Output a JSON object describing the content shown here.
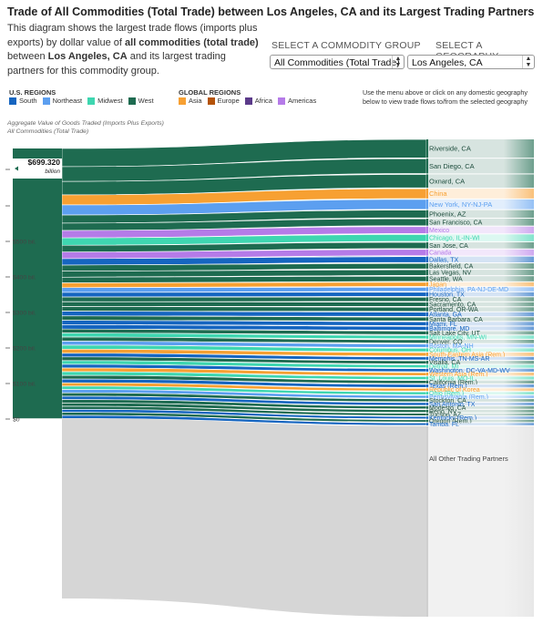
{
  "header": {
    "title": "Trade of All Commodities (Total Trade) between Los Angeles, CA and its Largest Trading Partners",
    "desc_prefix": "This diagram shows the largest trade flows (imports plus exports) by dollar value of ",
    "desc_bold1": "all commodities (total trade)",
    "desc_mid": " between ",
    "desc_bold2": "Los Angeles, CA",
    "desc_suffix": " and its largest trading partners for this commodity group."
  },
  "controls": {
    "commodity_label": "SELECT A COMMODITY GROUP",
    "commodity_value": "All Commodities (Total Trade)",
    "geography_label": "SELECT A GEOGRAPHY",
    "geography_value": "Los Angeles, CA"
  },
  "legend": {
    "us_title": "U.S. REGIONS",
    "us_items": [
      {
        "label": "South",
        "color": "#1565c0"
      },
      {
        "label": "Northeast",
        "color": "#5c9ff0"
      },
      {
        "label": "Midwest",
        "color": "#3ed6b0"
      },
      {
        "label": "West",
        "color": "#1e6b50"
      }
    ],
    "global_title": "GLOBAL REGIONS",
    "global_items": [
      {
        "label": "Asia",
        "color": "#f7a032"
      },
      {
        "label": "Europe",
        "color": "#b45309"
      },
      {
        "label": "Africa",
        "color": "#5b3a8a"
      },
      {
        "label": "Americas",
        "color": "#b57be8"
      }
    ]
  },
  "help_text": "Use the menu above or click on any domestic geography below to view trade flows to/from the selected geography",
  "chart_data": {
    "type": "sankey",
    "title": "Trade of All Commodities (Total Trade) between Los Angeles, CA and its Largest Trading Partners",
    "subtitle_line1": "Aggregate Value of Goods Traded (Imports Plus Exports)",
    "subtitle_line2": "All Commodities (Total Trade)",
    "source": "Los Angeles, CA",
    "total_value": "$699.320",
    "total_unit": "billion",
    "total_num": 699.32,
    "axis_ticks": [
      {
        "value": 500,
        "label": "$500 bil."
      },
      {
        "value": 400,
        "label": "$400 bil."
      },
      {
        "value": 300,
        "label": "$300 bil."
      },
      {
        "value": 200,
        "label": "$200 bil."
      },
      {
        "value": 100,
        "label": "$100 bil."
      },
      {
        "value": 0,
        "label": "$0"
      }
    ],
    "partners": [
      {
        "name": "Riverside, CA",
        "value": 27,
        "region": "West"
      },
      {
        "name": "San Diego, CA",
        "value": 22,
        "region": "West"
      },
      {
        "name": "Oxnard, CA",
        "value": 20,
        "region": "West"
      },
      {
        "name": "China",
        "value": 15,
        "region": "Asia"
      },
      {
        "name": "New York, NY-NJ-PA",
        "value": 15,
        "region": "Northeast"
      },
      {
        "name": "Phoenix, AZ",
        "value": 12,
        "region": "West"
      },
      {
        "name": "San Francisco, CA",
        "value": 11,
        "region": "West"
      },
      {
        "name": "Mexico",
        "value": 11,
        "region": "Americas"
      },
      {
        "name": "Chicago, IL-IN-WI",
        "value": 11,
        "region": "Midwest"
      },
      {
        "name": "San Jose, CA",
        "value": 10,
        "region": "West"
      },
      {
        "name": "Canada",
        "value": 10,
        "region": "Americas"
      },
      {
        "name": "Dallas, TX",
        "value": 9.5,
        "region": "South"
      },
      {
        "name": "Bakersfield, CA",
        "value": 9,
        "region": "West"
      },
      {
        "name": "Las Vegas, NV",
        "value": 9,
        "region": "West"
      },
      {
        "name": "Seattle, WA",
        "value": 8.5,
        "region": "West"
      },
      {
        "name": "Japan",
        "value": 7,
        "region": "Asia"
      },
      {
        "name": "Philadelphia, PA-NJ-DE-MD",
        "value": 7,
        "region": "Northeast"
      },
      {
        "name": "Houston, TX",
        "value": 7,
        "region": "South"
      },
      {
        "name": "Fresno, CA",
        "value": 7,
        "region": "West"
      },
      {
        "name": "Sacramento, CA",
        "value": 7,
        "region": "West"
      },
      {
        "name": "Portland, OR-WA",
        "value": 7,
        "region": "West"
      },
      {
        "name": "Atlanta, GA",
        "value": 7,
        "region": "South"
      },
      {
        "name": "Santa Barbara, CA",
        "value": 6.5,
        "region": "West"
      },
      {
        "name": "Miami, FL",
        "value": 6.5,
        "region": "South"
      },
      {
        "name": "Baltimore, MD",
        "value": 6.5,
        "region": "South"
      },
      {
        "name": "Salt Lake City, UT",
        "value": 6,
        "region": "West"
      },
      {
        "name": "Minneapolis, MN-WI",
        "value": 6,
        "region": "Midwest"
      },
      {
        "name": "Denver, CO",
        "value": 6,
        "region": "West"
      },
      {
        "name": "Boston, MA-NH",
        "value": 6,
        "region": "Northeast"
      },
      {
        "name": "Columbus, OH",
        "value": 6,
        "region": "Midwest"
      },
      {
        "name": "South-Eastern Asia (Rem.)",
        "value": 6,
        "region": "Asia"
      },
      {
        "name": "Memphis, TN-MS-AR",
        "value": 5.5,
        "region": "South"
      },
      {
        "name": "Visalia, CA",
        "value": 5.5,
        "region": "West"
      },
      {
        "name": "Detroit, MI",
        "value": 5.5,
        "region": "Midwest"
      },
      {
        "name": "Washington, DC-VA-MD-WV",
        "value": 5.5,
        "region": "South"
      },
      {
        "name": "Western Asia (Rem.)",
        "value": 5.5,
        "region": "Asia"
      },
      {
        "name": "St. Louis, MO-IL",
        "value": 5.5,
        "region": "Midwest"
      },
      {
        "name": "California (Rem.)",
        "value": 5.5,
        "region": "West"
      },
      {
        "name": "Texas (Rem.)",
        "value": 5.5,
        "region": "South"
      },
      {
        "name": "Republic of Korea",
        "value": 5,
        "region": "Asia"
      },
      {
        "name": "Ohio (Rem.)",
        "value": 5,
        "region": "Midwest"
      },
      {
        "name": "Pennsylvania (Rem.)",
        "value": 5,
        "region": "Northeast"
      },
      {
        "name": "Stockton, CA",
        "value": 5,
        "region": "West"
      },
      {
        "name": "San Antonio, TX",
        "value": 5,
        "region": "South"
      },
      {
        "name": "Modesto, CA",
        "value": 5,
        "region": "West"
      },
      {
        "name": "Reno, NV",
        "value": 5,
        "region": "West"
      },
      {
        "name": "Tucson, AZ",
        "value": 4.5,
        "region": "West"
      },
      {
        "name": "Kentucky (Rem.)",
        "value": 4.5,
        "region": "South"
      },
      {
        "name": "Oregon (Rem.)",
        "value": 4.5,
        "region": "West"
      },
      {
        "name": "Tampa, FL",
        "value": 4.5,
        "region": "South"
      },
      {
        "name": "All Other Trading Partners",
        "value": 268,
        "region": "Other"
      }
    ]
  }
}
